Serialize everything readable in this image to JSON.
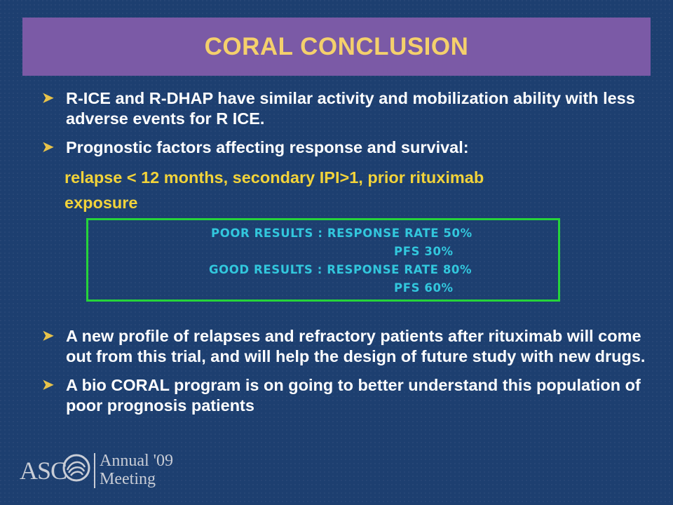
{
  "slide": {
    "title": "CORAL CONCLUSION",
    "bullets_top": [
      "R-ICE and R-DHAP have similar activity and mobilization ability with less adverse events for R ICE.",
      "Prognostic factors affecting response and survival:"
    ],
    "highlight_lines": [
      "relapse < 12 months, secondary IPI>1, prior rituximab",
      "exposure"
    ],
    "results_box": {
      "poor": "POOR RESULTS : RESPONSE RATE 50%",
      "poor_pfs": "PFS 30%",
      "good": "GOOD RESULTS : RESPONSE RATE 80%",
      "good_pfs": "PFS 60%"
    },
    "bullets_bottom": [
      "A new profile of relapses and refractory patients after rituximab will come out from this trial, and will help the design of future study with new drugs.",
      "A bio CORAL program is on going to better understand this population of poor prognosis patients"
    ]
  },
  "logo": {
    "asc": "ASC",
    "annual": "Annual '09",
    "meeting": "Meeting"
  },
  "colors": {
    "background": "#1d3f70",
    "title_banner": "#7b5aa6",
    "title_text": "#f4d06c",
    "highlight_text": "#f2d33a",
    "box_border": "#26d33a",
    "box_text": "#32c7dd"
  },
  "icons": {
    "bullet": "arrow-bullet-icon",
    "logo_mark": "asco-swirl-icon"
  }
}
